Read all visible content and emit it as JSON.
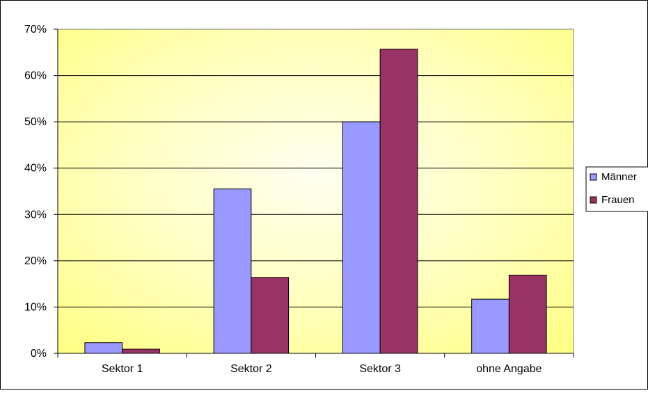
{
  "chart_data": {
    "type": "bar",
    "categories": [
      "Sektor 1",
      "Sektor 2",
      "Sektor 3",
      "ohne Angabe"
    ],
    "series": [
      {
        "name": "Männer",
        "values": [
          2.3,
          35.5,
          50.0,
          11.7
        ],
        "color": "#9999ff"
      },
      {
        "name": "Frauen",
        "values": [
          0.9,
          16.4,
          65.7,
          16.9
        ],
        "color": "#993366"
      }
    ],
    "yticks": [
      "0%",
      "10%",
      "20%",
      "30%",
      "40%",
      "50%",
      "60%",
      "70%"
    ],
    "ylim": [
      0,
      70
    ],
    "grid": true,
    "legend": "right",
    "plot_background": "#ffff99"
  }
}
